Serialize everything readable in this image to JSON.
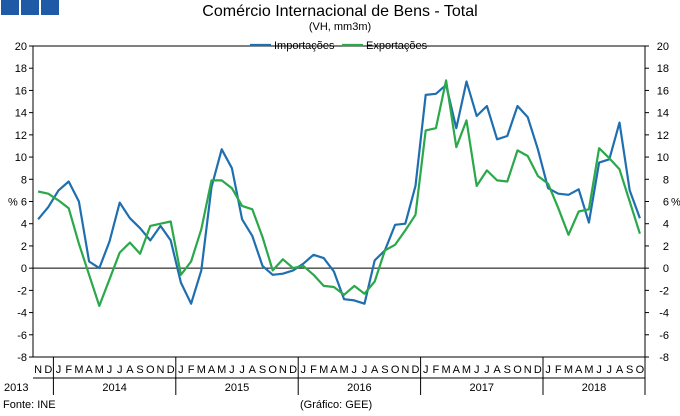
{
  "header": {
    "title": "Comércio Internacional de Bens - Total",
    "subtitle": "(VH, mm3m)",
    "brand_squares": [
      "#1f5aa6",
      "#1f5aa6",
      "#1f5aa6"
    ]
  },
  "footer": {
    "source": "Fonte: INE",
    "credit": "(Gráfico: GEE)"
  },
  "chart_data": {
    "type": "line",
    "ylabel_left": "%",
    "ylabel_right": "%",
    "ylim": [
      -8,
      20
    ],
    "yticks": [
      -8,
      -6,
      -4,
      -2,
      0,
      2,
      4,
      6,
      8,
      10,
      12,
      14,
      16,
      18,
      20
    ],
    "grid": false,
    "legend": "top-center",
    "month_labels": [
      "N",
      "D",
      "J",
      "F",
      "M",
      "A",
      "M",
      "J",
      "J",
      "A",
      "S",
      "O",
      "N",
      "D",
      "J",
      "F",
      "M",
      "A",
      "M",
      "J",
      "J",
      "A",
      "S",
      "O",
      "N",
      "D",
      "J",
      "F",
      "M",
      "A",
      "M",
      "J",
      "J",
      "A",
      "S",
      "O",
      "N",
      "D",
      "J",
      "F",
      "M",
      "A",
      "M",
      "J",
      "J",
      "A",
      "S",
      "O",
      "N",
      "D",
      "J",
      "F",
      "M",
      "A",
      "M",
      "J",
      "J",
      "A",
      "S",
      "O"
    ],
    "years": [
      {
        "label": "2013",
        "start": 0,
        "count": 2
      },
      {
        "label": "2014",
        "start": 2,
        "count": 12
      },
      {
        "label": "2015",
        "start": 14,
        "count": 12
      },
      {
        "label": "2016",
        "start": 26,
        "count": 12
      },
      {
        "label": "2017",
        "start": 38,
        "count": 12
      },
      {
        "label": "2018",
        "start": 50,
        "count": 10
      }
    ],
    "series": [
      {
        "name": "Importações",
        "color": "#1f6fb0",
        "values": [
          4.4,
          5.5,
          7.0,
          7.8,
          6.0,
          0.6,
          0.0,
          2.4,
          5.9,
          4.5,
          3.6,
          2.5,
          3.8,
          2.5,
          -1.3,
          -3.2,
          -0.2,
          7.3,
          10.7,
          9.0,
          4.4,
          2.9,
          0.2,
          -0.6,
          -0.5,
          -0.2,
          0.4,
          1.2,
          0.9,
          -0.3,
          -2.8,
          -2.9,
          -3.2,
          0.7,
          1.6,
          3.9,
          4.0,
          7.4,
          15.6,
          15.7,
          16.5,
          12.6,
          16.8,
          13.7,
          14.6,
          11.6,
          11.9,
          14.6,
          13.6,
          10.7,
          7.2,
          6.7,
          6.6,
          7.1,
          4.1,
          9.5,
          9.8,
          13.1,
          7.0,
          4.5
        ]
      },
      {
        "name": "Exportações",
        "color": "#2aa84a",
        "values": [
          6.9,
          6.7,
          6.1,
          5.4,
          2.2,
          -0.6,
          -3.4,
          -1.0,
          1.4,
          2.3,
          1.3,
          3.8,
          4.0,
          4.2,
          -0.6,
          0.6,
          3.5,
          7.9,
          7.9,
          7.2,
          5.6,
          5.3,
          2.8,
          -0.2,
          0.8,
          0.0,
          0.2,
          -0.6,
          -1.6,
          -1.7,
          -2.4,
          -1.6,
          -2.3,
          -1.2,
          1.6,
          2.1,
          3.4,
          4.8,
          12.4,
          12.6,
          16.9,
          10.9,
          13.3,
          7.4,
          8.8,
          7.9,
          7.8,
          10.6,
          10.1,
          8.3,
          7.6,
          5.4,
          3.0,
          5.1,
          5.3,
          10.8,
          9.9,
          8.9,
          6.0,
          3.1
        ]
      }
    ]
  }
}
